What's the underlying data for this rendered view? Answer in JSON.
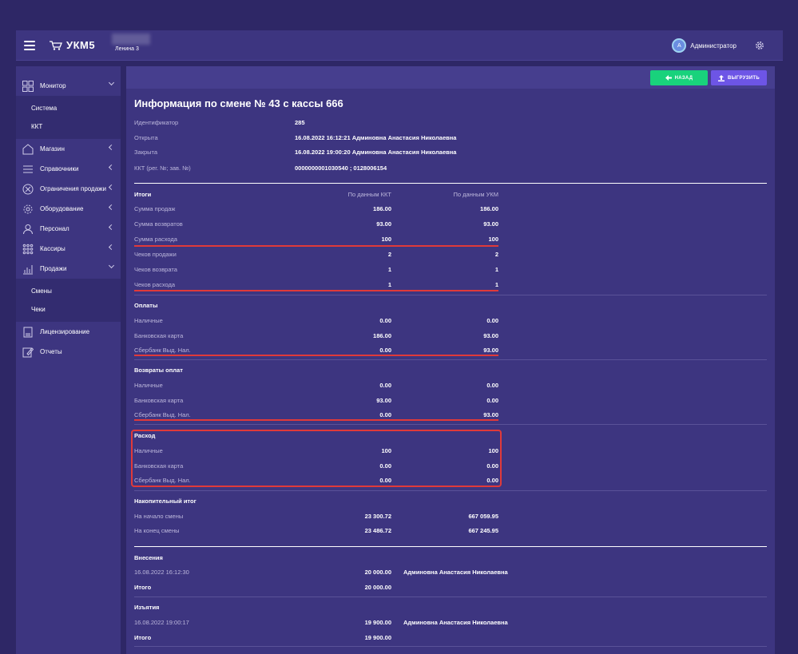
{
  "topbar": {
    "logo": "УКМ5",
    "store": "Ленина 3",
    "user_avatar": "А",
    "user_name": "Администратор"
  },
  "sidebar": {
    "items": [
      {
        "label": "Монитор",
        "icon": "grid-icon",
        "expanded": true
      },
      {
        "label": "Магазин",
        "icon": "store-icon"
      },
      {
        "label": "Справочники",
        "icon": "list-icon"
      },
      {
        "label": "Ограничения продажи",
        "icon": "block-icon"
      },
      {
        "label": "Оборудование",
        "icon": "gear-icon"
      },
      {
        "label": "Персонал",
        "icon": "person-icon"
      },
      {
        "label": "Кассиры",
        "icon": "dots-grid-icon"
      },
      {
        "label": "Продажи",
        "icon": "chart-icon",
        "expanded": true
      },
      {
        "label": "Лицензирование",
        "icon": "document-icon"
      },
      {
        "label": "Отчеты",
        "icon": "edit-icon"
      }
    ],
    "monitor_sub": [
      "Система",
      "ККТ"
    ],
    "sales_sub": [
      "Смены",
      "Чеки"
    ]
  },
  "actions": {
    "back": "НАЗАД",
    "export": "ВЫГРУЗИТЬ"
  },
  "title": "Информация по смене № 43 с кассы 666",
  "info": [
    {
      "label": "Идентификатор",
      "value": "285"
    },
    {
      "label": "Открыта",
      "value": "16.08.2022 16:12:21 Админовна Анастасия Николаевна"
    },
    {
      "label": "Закрыта",
      "value": "16.08.2022 19:00:20 Админовна Анастасия Николаевна"
    },
    {
      "label": "ККТ (рег. №; зав. №)",
      "value": "0000000001030540 ; 0128006154"
    }
  ],
  "totals": {
    "header": "Итоги",
    "col_kkt": "По данным ККТ",
    "col_ukm": "По данным УКМ",
    "rows": [
      {
        "label": "Сумма продаж",
        "kkt": "186.00",
        "ukm": "186.00"
      },
      {
        "label": "Сумма возвратов",
        "kkt": "93.00",
        "ukm": "93.00"
      },
      {
        "label": "Сумма расхода",
        "kkt": "100",
        "ukm": "100"
      },
      {
        "label": "Чеков продажи",
        "kkt": "2",
        "ukm": "2"
      },
      {
        "label": "Чеков возврата",
        "kkt": "1",
        "ukm": "1"
      },
      {
        "label": "Чеков расхода",
        "kkt": "1",
        "ukm": "1"
      }
    ]
  },
  "payments": {
    "header": "Оплаты",
    "rows": [
      {
        "label": "Наличные",
        "kkt": "0.00",
        "ukm": "0.00"
      },
      {
        "label": "Банковская карта",
        "kkt": "186.00",
        "ukm": "93.00"
      },
      {
        "label": "Сбербанк Выд. Нал.",
        "kkt": "0.00",
        "ukm": "93.00"
      }
    ]
  },
  "refunds": {
    "header": "Возвраты оплат",
    "rows": [
      {
        "label": "Наличные",
        "kkt": "0.00",
        "ukm": "0.00"
      },
      {
        "label": "Банковская карта",
        "kkt": "93.00",
        "ukm": "0.00"
      },
      {
        "label": "Сбербанк Выд. Нал.",
        "kkt": "0.00",
        "ukm": "93.00"
      }
    ]
  },
  "expense": {
    "header": "Расход",
    "rows": [
      {
        "label": "Наличные",
        "kkt": "100",
        "ukm": "100"
      },
      {
        "label": "Банковская карта",
        "kkt": "0.00",
        "ukm": "0.00"
      },
      {
        "label": "Сбербанк Выд. Нал.",
        "kkt": "0.00",
        "ukm": "0.00"
      }
    ]
  },
  "cumulative": {
    "header": "Накопительный итог",
    "rows": [
      {
        "label": "На начало смены",
        "kkt": "23 300.72",
        "ukm": "667 059.95"
      },
      {
        "label": "На конец смены",
        "kkt": "23 486.72",
        "ukm": "667 245.95"
      }
    ]
  },
  "deposits": {
    "header": "Внесения",
    "date": "16.08.2022 16:12:30",
    "amount": "20 000.00",
    "person": "Админовна Анастасия Николаевна",
    "total_label": "Итого",
    "total": "20 000.00"
  },
  "withdrawals": {
    "header": "Изъятия",
    "date": "16.08.2022 19:00:17",
    "amount": "19 900.00",
    "person": "Админовна Анастасия Николаевна",
    "total_label": "Итого",
    "total": "19 900.00"
  }
}
